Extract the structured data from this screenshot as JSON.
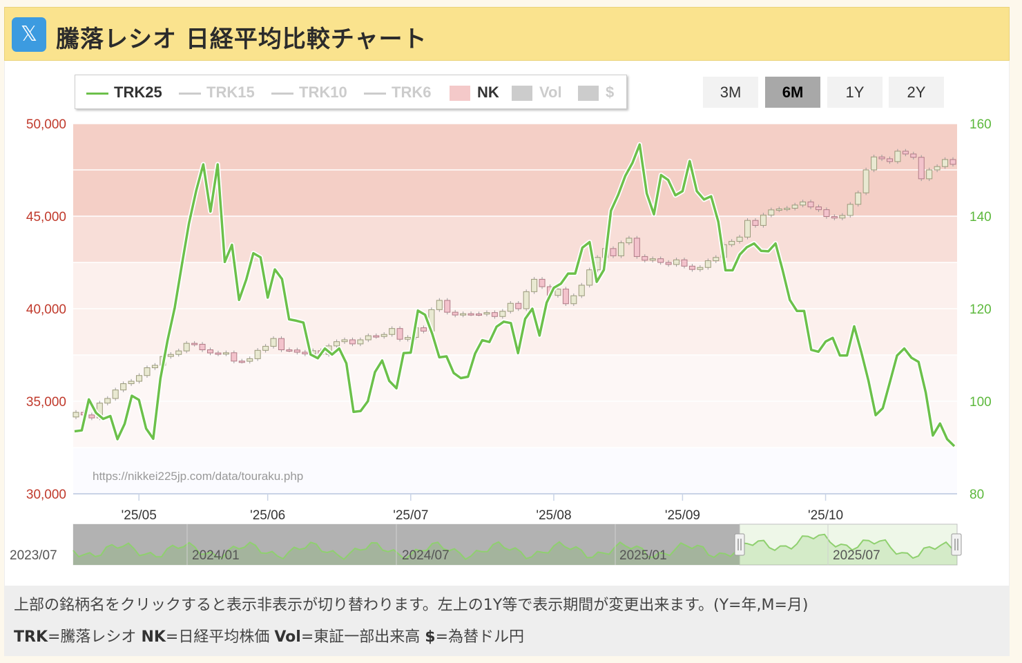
{
  "header": {
    "title": "騰落レシオ 日経平均比較チャート",
    "logo": "x-logo"
  },
  "legend": [
    {
      "label": "TRK25",
      "color": "#6cc04a",
      "active": true,
      "kind": "line"
    },
    {
      "label": "TRK15",
      "color": "#cccccc",
      "active": false,
      "kind": "line"
    },
    {
      "label": "TRK10",
      "color": "#cccccc",
      "active": false,
      "kind": "line"
    },
    {
      "label": "TRK6",
      "color": "#cccccc",
      "active": false,
      "kind": "line"
    },
    {
      "label": "NK",
      "color": "#f4c9c9",
      "active": true,
      "kind": "box"
    },
    {
      "label": "Vol",
      "color": "#cccccc",
      "active": false,
      "kind": "box"
    },
    {
      "label": "$",
      "color": "#cccccc",
      "active": false,
      "kind": "box"
    }
  ],
  "range_buttons": [
    {
      "label": "3M",
      "active": false
    },
    {
      "label": "6M",
      "active": true
    },
    {
      "label": "1Y",
      "active": false
    },
    {
      "label": "2Y",
      "active": false
    }
  ],
  "chart_data": {
    "type": "line",
    "left_axis": {
      "ticks": [
        "50,000",
        "45,000",
        "40,000",
        "35,000",
        "30,000"
      ],
      "values": [
        50000,
        45000,
        40000,
        35000,
        30000
      ],
      "range": [
        30000,
        50000
      ],
      "color": "#c0392b"
    },
    "right_axis": {
      "ticks": [
        "160",
        "140",
        "120",
        "100",
        "80"
      ],
      "values": [
        160,
        140,
        120,
        100,
        80
      ],
      "range": [
        80,
        160
      ],
      "color": "#5cb83c"
    },
    "x_ticks": [
      "'25/05",
      "'25/06",
      "'25/07",
      "'25/08",
      "'25/09",
      "'25/10"
    ],
    "bands": [
      {
        "from": 45000,
        "to": 50000,
        "color": "#f4cfc6"
      },
      {
        "from": 42500,
        "to": 45000,
        "color": "#f8ded8"
      },
      {
        "from": 37500,
        "to": 42500,
        "color": "#fcf0ed"
      },
      {
        "from": 32500,
        "to": 37500,
        "color": "#fdf7f6"
      }
    ],
    "watermark": "https://nikkei225jp.com/data/touraku.php",
    "series": [
      {
        "name": "TRK25",
        "axis": "right",
        "color": "#6cc04a",
        "values": [
          93.5,
          93.7,
          100.4,
          97.5,
          96.2,
          96.8,
          91.8,
          95.1,
          101.2,
          100.3,
          94.1,
          91.9,
          104.9,
          113.2,
          120.2,
          129.5,
          138.5,
          145.5,
          151.2,
          141.0,
          151.2,
          130.1,
          133.8,
          121.9,
          126.3,
          132.0,
          131.1,
          122.4,
          128.5,
          126.4,
          117.7,
          117.4,
          117.0,
          110.1,
          109.3,
          111.4,
          110.1,
          111.4,
          108.2,
          97.7,
          97.9,
          100.0,
          106.3,
          108.8,
          104.4,
          102.8,
          110.4,
          110.5,
          119.6,
          118.7,
          114.6,
          109.5,
          109.7,
          106.1,
          105.0,
          105.3,
          110.3,
          113.2,
          112.8,
          116.1,
          117.2,
          116.9,
          110.4,
          117.8,
          120.0,
          114.2,
          121.3,
          124.5,
          125.4,
          127.6,
          127.6,
          133.2,
          134.4,
          125.8,
          128.4,
          141.2,
          144.6,
          148.7,
          151.5,
          155.5,
          144.9,
          140.4,
          148.9,
          147.8,
          144.5,
          145.4,
          151.9,
          145.4,
          143.6,
          144.3,
          138.8,
          128.3,
          128.3,
          131.7,
          133.3,
          134.1,
          132.5,
          132.4,
          134.1,
          128.3,
          121.9,
          119.5,
          119.5,
          111.1,
          110.7,
          112.9,
          113.7,
          109.9,
          109.9,
          116.2,
          110.6,
          104.4,
          97.0,
          98.5,
          104.2,
          109.9,
          111.4,
          109.4,
          108.5,
          101.9,
          92.6,
          95.2,
          91.8,
          90.3
        ]
      },
      {
        "name": "NK",
        "axis": "left",
        "kind": "candlestick",
        "color": "#f4c9c9",
        "close": [
          34400,
          34260,
          34100,
          34900,
          35150,
          35610,
          35950,
          36080,
          36390,
          36810,
          36940,
          37420,
          37530,
          37720,
          38130,
          38080,
          37780,
          37610,
          37560,
          37620,
          37170,
          37160,
          37300,
          37750,
          37970,
          38390,
          37780,
          37770,
          37650,
          37560,
          37730,
          37530,
          37990,
          38220,
          38320,
          38100,
          38320,
          38540,
          38500,
          38610,
          38930,
          38350,
          38450,
          38970,
          38790,
          39950,
          40450,
          39810,
          39660,
          39730,
          39720,
          39710,
          39790,
          39580,
          39860,
          40290,
          40000,
          40920,
          41590,
          41190,
          40720,
          41060,
          40270,
          40700,
          41270,
          42100,
          42770,
          43250,
          42860,
          43560,
          43810,
          42820,
          42620,
          42700,
          42500,
          42390,
          42640,
          42300,
          42120,
          42230,
          42590,
          42770,
          43460,
          43640,
          43870,
          44770,
          44500,
          45060,
          45340,
          45390,
          45430,
          45600,
          45770,
          45500,
          45350,
          44980,
          44900,
          45040,
          45640,
          46260,
          47500,
          48200,
          48100,
          47950,
          48510,
          48360,
          48180,
          47020,
          47500,
          47680,
          48060,
          47800
        ]
      }
    ]
  },
  "navigator": {
    "labels": [
      "2023/07",
      "2024/01",
      "2024/07",
      "2025/01",
      "2025/07"
    ]
  },
  "footer": {
    "line1": "上部の銘柄名をクリックすると表示非表示が切り替わります。左上の1Y等で表示期間が変更出来ます。(Y=年,M=月)",
    "line2": [
      {
        "b": "TRK",
        "t": "=騰落レシオ "
      },
      {
        "b": "NK",
        "t": "=日経平均株価 "
      },
      {
        "b": "Vol",
        "t": "=東証一部出来高 "
      },
      {
        "b": "$",
        "t": "=為替ドル円"
      }
    ]
  }
}
